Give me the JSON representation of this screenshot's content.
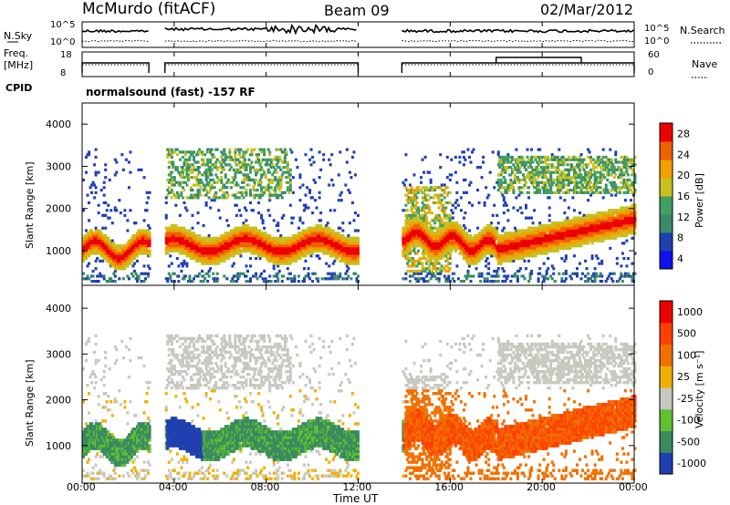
{
  "header": {
    "site": "McMurdo (fitACF)",
    "beam": "Beam 09",
    "date": "02/Mar/2012"
  },
  "noise_panel": {
    "left_label": "N.Sky",
    "right_label": "N.Search",
    "left_ticks": [
      "10^5",
      "10^0"
    ],
    "right_ticks": [
      "10^5",
      "10^0"
    ]
  },
  "freq_panel": {
    "left_label_1": "Freq.",
    "left_label_2": "[MHz]",
    "right_label": "Nave",
    "left_ticks": [
      "18",
      "8"
    ],
    "right_ticks": [
      "60",
      "0"
    ]
  },
  "cpid": {
    "label": "CPID",
    "text": "normalsound (fast) -157 RF"
  },
  "colors": {
    "power": [
      "#1010ee",
      "#2040b0",
      "#3a8a6a",
      "#40a060",
      "#c8c020",
      "#f0a000",
      "#f06000",
      "#ee0000"
    ],
    "velocity": [
      "#ee0000",
      "#ff4000",
      "#f07000",
      "#f0b000",
      "#c8c8c0",
      "#60c030",
      "#3a8a60",
      "#2040b0"
    ]
  },
  "chart_data": [
    {
      "type": "heatmap",
      "name": "Power",
      "ylabel": "Slant Range [km]",
      "yticks": [
        "4000",
        "3000",
        "2000",
        "1000"
      ],
      "ylim": [
        180,
        4500
      ],
      "colorbar_label": "Power [dB]",
      "colorbar_ticks": [
        "28",
        "24",
        "20",
        "16",
        "12",
        "8",
        "4"
      ],
      "colorbar_range": [
        0,
        30
      ]
    },
    {
      "type": "heatmap",
      "name": "Velocity",
      "ylabel": "Slant Range [km]",
      "yticks": [
        "4000",
        "3000",
        "2000",
        "1000"
      ],
      "ylim": [
        180,
        4500
      ],
      "colorbar_label": "Velocity [m s⁻¹]",
      "colorbar_ticks": [
        "1000",
        "500",
        "100",
        "25",
        "-25",
        "-100",
        "-500",
        "-1000"
      ]
    }
  ],
  "x_axis": {
    "label": "Time UT",
    "ticks": [
      "00:00",
      "04:00",
      "08:00",
      "12:00",
      "16:00",
      "20:00",
      "00:00"
    ]
  }
}
